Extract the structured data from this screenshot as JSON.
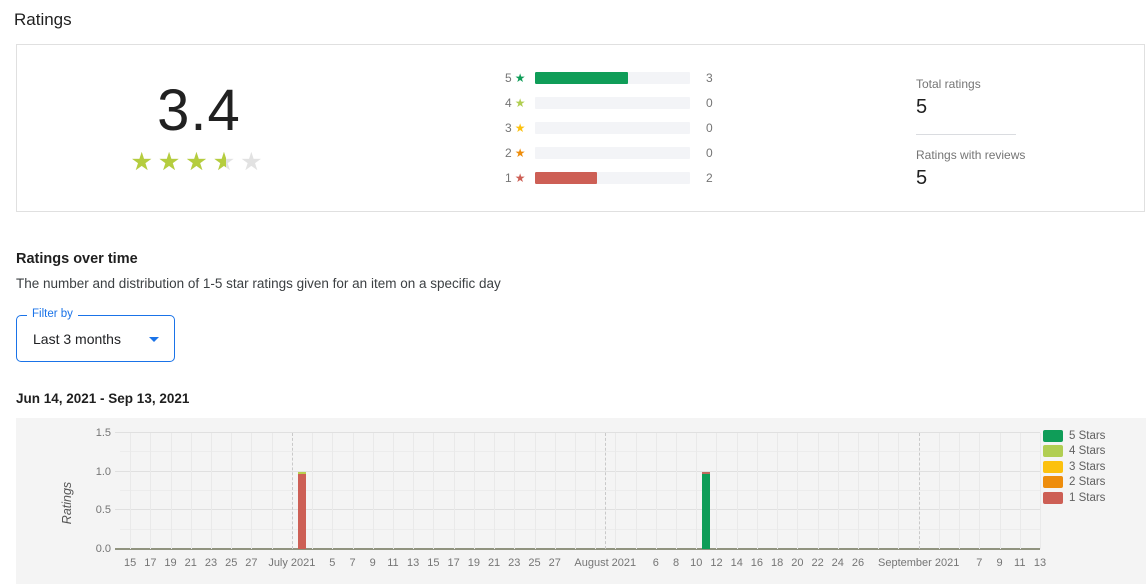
{
  "page": {
    "title": "Ratings"
  },
  "summary": {
    "average": "3.4",
    "stars_filled": 3.5,
    "stars_total": 5,
    "histogram": {
      "max_total": 5,
      "rows": [
        {
          "stars": "5",
          "value": 3,
          "color": "#0f9d58"
        },
        {
          "stars": "4",
          "value": 0,
          "color": "#b1ce52"
        },
        {
          "stars": "3",
          "value": 0,
          "color": "#fcc10e"
        },
        {
          "stars": "2",
          "value": 0,
          "color": "#ee8d0c"
        },
        {
          "stars": "1",
          "value": 2,
          "color": "#cd5f55"
        }
      ]
    },
    "stats": [
      {
        "label": "Total ratings",
        "value": "5"
      },
      {
        "label": "Ratings with reviews",
        "value": "5"
      }
    ]
  },
  "over_time": {
    "heading": "Ratings over time",
    "description": "The number and distribution of 1-5 star ratings given for an item on a specific day",
    "filter": {
      "label": "Filter by",
      "value": "Last 3 months"
    },
    "date_range": "Jun 14, 2021 - Sep 13, 2021"
  },
  "chart_data": {
    "type": "bar",
    "title": "Ratings over time",
    "ylabel": "Ratings",
    "ylim": [
      0,
      1.5
    ],
    "y_ticks": [
      0.0,
      0.5,
      1.0,
      1.5
    ],
    "y_minor_step": 0.25,
    "grid": true,
    "x_range": [
      "Jun 14, 2021",
      "Sep 13, 2021"
    ],
    "x_days_total": 91,
    "x_ticks": [
      {
        "label": "15",
        "day": 1
      },
      {
        "label": "17",
        "day": 3
      },
      {
        "label": "19",
        "day": 5
      },
      {
        "label": "21",
        "day": 7
      },
      {
        "label": "23",
        "day": 9
      },
      {
        "label": "25",
        "day": 11
      },
      {
        "label": "27",
        "day": 13
      },
      {
        "label": "July 2021",
        "day": 17
      },
      {
        "label": "5",
        "day": 21
      },
      {
        "label": "7",
        "day": 23
      },
      {
        "label": "9",
        "day": 25
      },
      {
        "label": "11",
        "day": 27
      },
      {
        "label": "13",
        "day": 29
      },
      {
        "label": "15",
        "day": 31
      },
      {
        "label": "17",
        "day": 33
      },
      {
        "label": "19",
        "day": 35
      },
      {
        "label": "21",
        "day": 37
      },
      {
        "label": "23",
        "day": 39
      },
      {
        "label": "25",
        "day": 41
      },
      {
        "label": "27",
        "day": 43
      },
      {
        "label": "August 2021",
        "day": 48
      },
      {
        "label": "6",
        "day": 53
      },
      {
        "label": "8",
        "day": 55
      },
      {
        "label": "10",
        "day": 57
      },
      {
        "label": "12",
        "day": 59
      },
      {
        "label": "14",
        "day": 61
      },
      {
        "label": "16",
        "day": 63
      },
      {
        "label": "18",
        "day": 65
      },
      {
        "label": "20",
        "day": 67
      },
      {
        "label": "22",
        "day": 69
      },
      {
        "label": "24",
        "day": 71
      },
      {
        "label": "26",
        "day": 73
      },
      {
        "label": "September 2021",
        "day": 79
      },
      {
        "label": "7",
        "day": 85
      },
      {
        "label": "9",
        "day": 87
      },
      {
        "label": "11",
        "day": 89
      },
      {
        "label": "13",
        "day": 91
      }
    ],
    "month_lines_days": [
      17,
      48,
      79
    ],
    "bars": [
      {
        "series": "1 Stars",
        "date": "Jul 2, 2021",
        "day": 18,
        "value": 1.0,
        "color": "#cd5f55",
        "cap_color": "#b9cf4e"
      },
      {
        "series": "5 Stars",
        "date": "Aug 11, 2021",
        "day": 58,
        "value": 1.0,
        "color": "#0f9d58",
        "cap_color": "#c2695e"
      }
    ],
    "legend_position": "right",
    "legend": [
      {
        "label": "5 Stars",
        "color": "#0f9d58"
      },
      {
        "label": "4 Stars",
        "color": "#b1ce52"
      },
      {
        "label": "3 Stars",
        "color": "#fcc10e"
      },
      {
        "label": "2 Stars",
        "color": "#ee8d0c"
      },
      {
        "label": "1 Stars",
        "color": "#cd5f55"
      }
    ]
  },
  "colors": {
    "accent_blue": "#1a73e8",
    "star_filled": "#b5cd3e",
    "star_empty": "#e2e2e2",
    "text_secondary": "#757575"
  },
  "glyphs": {
    "star": "★"
  }
}
